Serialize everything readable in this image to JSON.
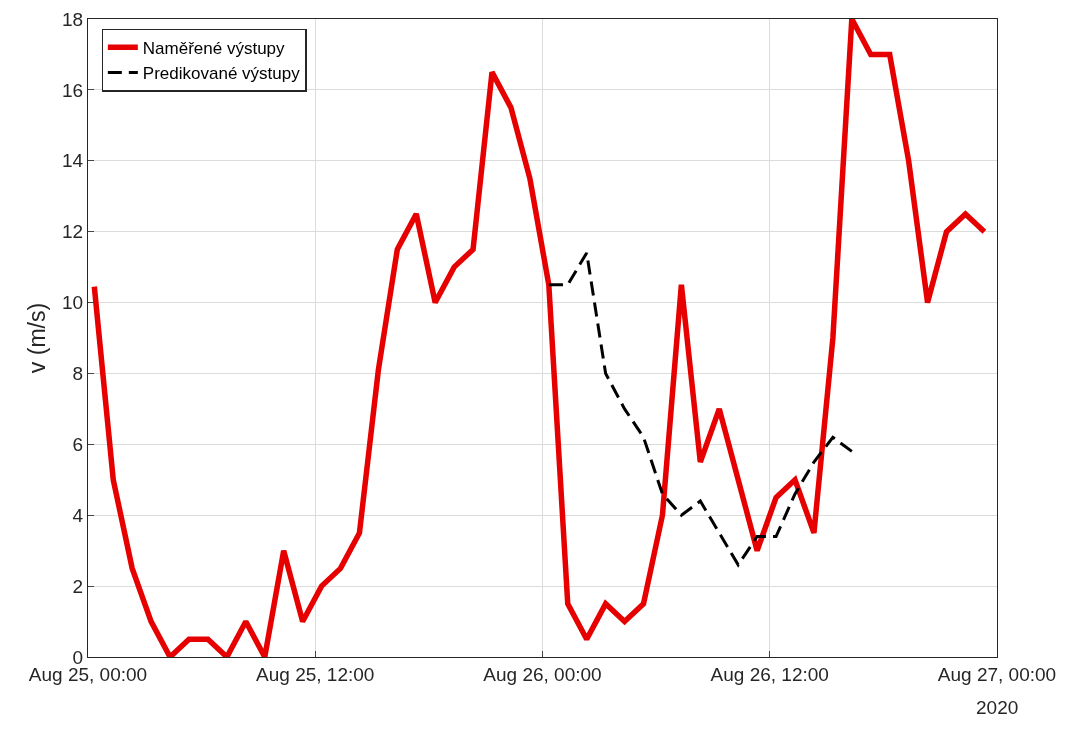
{
  "chart_data": {
    "type": "line",
    "ylabel": "v (m/s)",
    "x": [
      "2020-08-25T00:20",
      "2020-08-25T01:20",
      "2020-08-25T02:20",
      "2020-08-25T03:20",
      "2020-08-25T04:20",
      "2020-08-25T05:20",
      "2020-08-25T06:20",
      "2020-08-25T07:20",
      "2020-08-25T08:20",
      "2020-08-25T09:20",
      "2020-08-25T10:20",
      "2020-08-25T11:20",
      "2020-08-25T12:20",
      "2020-08-25T13:20",
      "2020-08-25T14:20",
      "2020-08-25T15:20",
      "2020-08-25T16:20",
      "2020-08-25T17:20",
      "2020-08-25T18:20",
      "2020-08-25T19:20",
      "2020-08-25T20:20",
      "2020-08-25T21:20",
      "2020-08-25T22:20",
      "2020-08-25T23:20",
      "2020-08-26T00:20",
      "2020-08-26T01:20",
      "2020-08-26T02:20",
      "2020-08-26T03:20",
      "2020-08-26T04:20",
      "2020-08-26T05:20",
      "2020-08-26T06:20",
      "2020-08-26T07:20",
      "2020-08-26T08:20",
      "2020-08-26T09:20",
      "2020-08-26T10:20",
      "2020-08-26T11:20",
      "2020-08-26T12:20",
      "2020-08-26T13:20",
      "2020-08-26T14:20",
      "2020-08-26T15:20",
      "2020-08-26T16:20",
      "2020-08-26T17:20",
      "2020-08-26T18:20",
      "2020-08-26T19:20",
      "2020-08-26T20:20",
      "2020-08-26T21:20",
      "2020-08-26T22:20",
      "2020-08-26T23:20"
    ],
    "series": [
      {
        "name": "Naměřené výstupy",
        "color": "#e60000",
        "line_style": "solid",
        "values": [
          10.45,
          5.0,
          2.5,
          1.0,
          0,
          0.5,
          0.5,
          0,
          1.0,
          0,
          3.0,
          1.0,
          2.0,
          2.5,
          3.5,
          8.1,
          11.5,
          12.5,
          10.0,
          11.0,
          11.5,
          16.5,
          15.5,
          13.5,
          10.5,
          1.5,
          0.5,
          1.5,
          1.0,
          1.5,
          4.0,
          10.5,
          5.5,
          7.0,
          5.0,
          3.0,
          4.5,
          5.0,
          3.5,
          9.0,
          18.0,
          17.0,
          17.0,
          14.0,
          10.0,
          12.0,
          12.5,
          12.0
        ]
      },
      {
        "name": "Predikované výstupy",
        "color": "#000000",
        "line_style": "dashed",
        "values": [
          null,
          null,
          null,
          null,
          null,
          null,
          null,
          null,
          null,
          null,
          null,
          null,
          null,
          null,
          null,
          null,
          null,
          null,
          null,
          null,
          null,
          null,
          null,
          null,
          10.5,
          10.5,
          11.4,
          8.0,
          7.0,
          6.2,
          4.6,
          4.0,
          4.4,
          3.5,
          2.6,
          3.4,
          3.4,
          4.6,
          5.5,
          6.2,
          5.8,
          null,
          null,
          null,
          null,
          null,
          null,
          null
        ]
      }
    ],
    "xlim": [
      "2020-08-25T00:00",
      "2020-08-27T00:00"
    ],
    "xticks": [
      {
        "value": "2020-08-25T00:00",
        "label": "Aug 25, 00:00"
      },
      {
        "value": "2020-08-25T12:00",
        "label": "Aug 25, 12:00"
      },
      {
        "value": "2020-08-26T00:00",
        "label": "Aug 26, 00:00"
      },
      {
        "value": "2020-08-26T12:00",
        "label": "Aug 26, 12:00"
      },
      {
        "value": "2020-08-27T00:00",
        "label": "Aug 27, 00:00"
      }
    ],
    "ylim": [
      0,
      18
    ],
    "yticks": [
      0,
      2,
      4,
      6,
      8,
      10,
      12,
      14,
      16,
      18
    ],
    "annotations": [
      "2020"
    ],
    "grid": true,
    "legend": "top left",
    "marker": "none"
  }
}
